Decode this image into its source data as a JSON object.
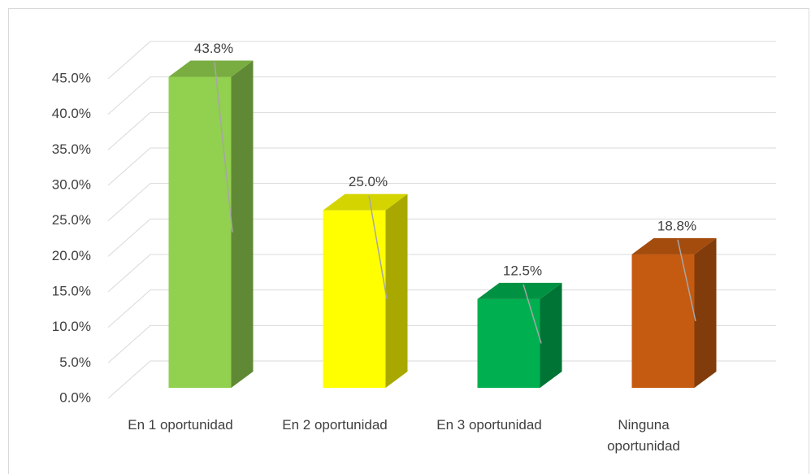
{
  "chart_data": {
    "type": "bar3d",
    "categories": [
      "En 1 oportunidad",
      "En 2 oportunidad",
      "En 3 oportunidad",
      "Ninguna oportunidad"
    ],
    "values": [
      43.8,
      25.0,
      12.5,
      18.8
    ],
    "value_labels": [
      "43.8%",
      "25.0%",
      "12.5%",
      "18.8%"
    ],
    "colors": [
      "#92d050",
      "#ffff00",
      "#00b050",
      "#c55a11"
    ],
    "ylim": [
      0,
      45
    ],
    "yticks": [
      {
        "value": 0,
        "label": "0.0%"
      },
      {
        "value": 5,
        "label": "5.0%"
      },
      {
        "value": 10,
        "label": "10.0%"
      },
      {
        "value": 15,
        "label": "15.0%"
      },
      {
        "value": 20,
        "label": "20.0%"
      },
      {
        "value": 25,
        "label": "25.0%"
      },
      {
        "value": 30,
        "label": "30.0%"
      },
      {
        "value": 35,
        "label": "35.0%"
      },
      {
        "value": 40,
        "label": "40.0%"
      },
      {
        "value": 45,
        "label": "45.0%"
      }
    ],
    "grid": true
  }
}
